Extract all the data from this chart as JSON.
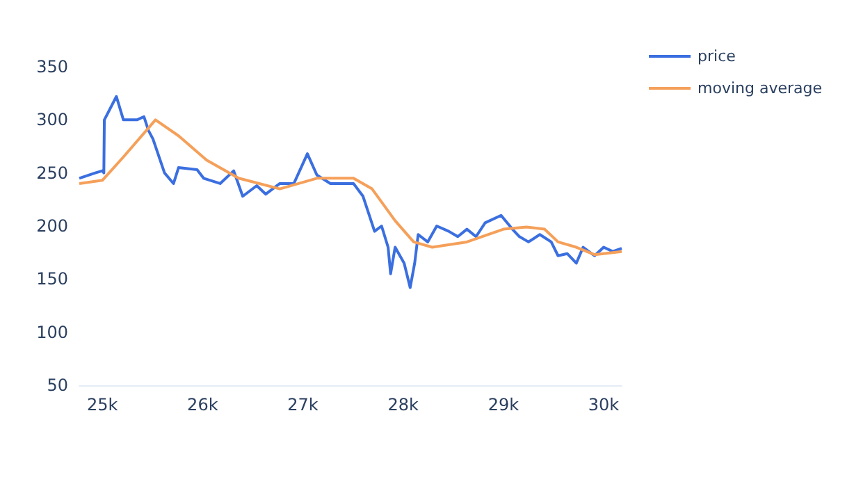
{
  "chart_data": {
    "type": "line",
    "xlim": [
      24770,
      30180
    ],
    "ylim": [
      50,
      350
    ],
    "xticks": [
      {
        "value": 25000,
        "label": "25k"
      },
      {
        "value": 26000,
        "label": "26k"
      },
      {
        "value": 27000,
        "label": "27k"
      },
      {
        "value": 28000,
        "label": "28k"
      },
      {
        "value": 29000,
        "label": "29k"
      },
      {
        "value": 30000,
        "label": "30k"
      }
    ],
    "yticks": [
      50,
      100,
      150,
      200,
      250,
      300,
      350
    ],
    "grid": false,
    "legend": "top right",
    "marker": "none",
    "line_style": "solid",
    "series": [
      {
        "name": "price",
        "color": "#3b6fe0",
        "x": [
          24770,
          24930,
          25000,
          25015,
          25020,
          25140,
          25210,
          25345,
          25415,
          25460,
          25505,
          25620,
          25710,
          25760,
          25945,
          26010,
          26175,
          26310,
          26400,
          26540,
          26630,
          26770,
          26910,
          27045,
          27140,
          27275,
          27505,
          27600,
          27715,
          27785,
          27850,
          27875,
          27920,
          28010,
          28070,
          28115,
          28150,
          28245,
          28335,
          28455,
          28545,
          28636,
          28727,
          28818,
          28977,
          29090,
          29160,
          29250,
          29363,
          29477,
          29545,
          29636,
          29727,
          29795,
          29909,
          30000,
          30090,
          30180
        ],
        "values": [
          245,
          250,
          252,
          250,
          300,
          322,
          300,
          300,
          303,
          290,
          282,
          250,
          240,
          255,
          253,
          245,
          240,
          252,
          228,
          238,
          230,
          240,
          240,
          268,
          248,
          240,
          240,
          228,
          195,
          200,
          180,
          155,
          180,
          165,
          142,
          165,
          192,
          185,
          200,
          195,
          190,
          197,
          190,
          203,
          210,
          197,
          190,
          185,
          192,
          185,
          172,
          174,
          165,
          180,
          172,
          180,
          176,
          179
        ]
      },
      {
        "name": "moving average",
        "color": "#f5a05a",
        "x": [
          24770,
          25000,
          25210,
          25530,
          25760,
          26040,
          26360,
          26770,
          27140,
          27505,
          27690,
          27920,
          28105,
          28290,
          28636,
          29000,
          29230,
          29410,
          29545,
          29727,
          29909,
          30180
        ],
        "values": [
          240,
          243,
          265,
          300,
          285,
          262,
          245,
          235,
          245,
          245,
          235,
          205,
          185,
          180,
          185,
          197,
          199,
          197,
          185,
          180,
          173,
          176
        ]
      }
    ]
  }
}
